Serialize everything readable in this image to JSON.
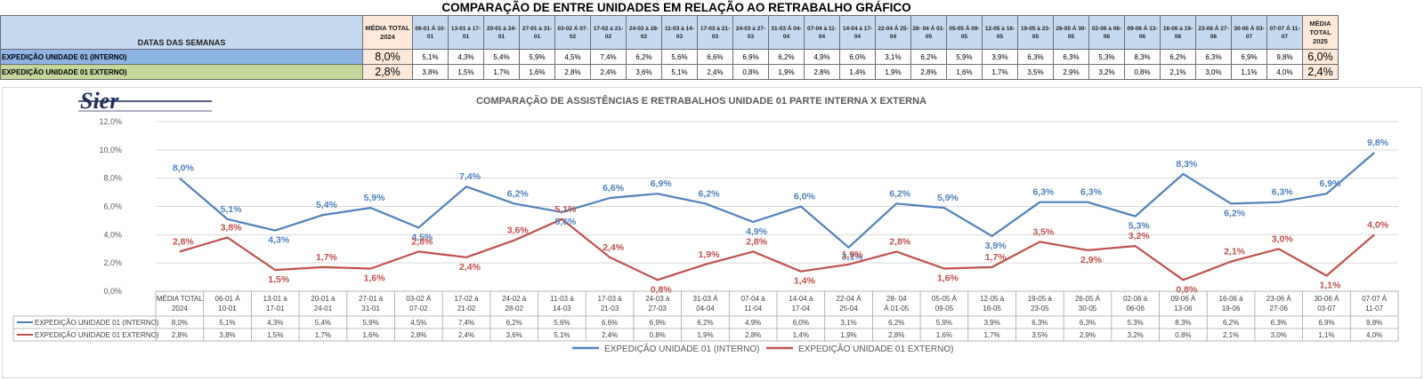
{
  "header": {
    "title": "COMPARAÇÃO DE ENTRE UNIDADES EM RELAÇÃO AO RETRABALHO GRÁFICO",
    "weeks_label": "DATAS DAS SEMANAS",
    "total_2024": "MÉDIA TOTAL 2024",
    "total_2025": "MÉDIA TOTAL 2025"
  },
  "weeks": [
    "06-01 Á 10-01",
    "13-01 à 17-01",
    "20-01 à 24-01",
    "27-01 à 31-01",
    "03-02 Á 07-02",
    "17-02 à 21-02",
    "24-02 à 28-02",
    "11-03 à 14-03",
    "17-03 à 21-03",
    "24-03 à 27-03",
    "31-03 Á 04-04",
    "07-04 à 11-04",
    "14-04 à 17-04",
    "22-04 Á 25-04",
    "28- 04 Á 01-05",
    "05-05 Á 09-05",
    "12-05 à 16-05",
    "19-05 à 23-05",
    "26-05 Á 30-05",
    "02-06 à 06-06",
    "09-06 Á 13-06",
    "16-06 à 19-06",
    "23-06 Á 27-06",
    "30-06 Á 03-07",
    "07-07 Á 11-07"
  ],
  "rows": [
    {
      "label": "EXPEDIÇÃO UNIDADE 01 (INTERNO)",
      "total_2024": "8,0%",
      "values": [
        "5,1%",
        "4,3%",
        "5,4%",
        "5,9%",
        "4,5%",
        "7,4%",
        "6,2%",
        "5,6%",
        "6,6%",
        "6,9%",
        "6,2%",
        "4,9%",
        "6,0%",
        "3,1%",
        "6,2%",
        "5,9%",
        "3,9%",
        "6,3%",
        "6,3%",
        "5,3%",
        "8,3%",
        "6,2%",
        "6,3%",
        "6,9%",
        "9,8%"
      ],
      "total_2025": "6,0%"
    },
    {
      "label": "EXPEDIÇÃO UNIDADE 01 EXTERNO)",
      "total_2024": "2,8%",
      "values": [
        "3,8%",
        "1,5%",
        "1,7%",
        "1,6%",
        "2,8%",
        "2,4%",
        "3,6%",
        "5,1%",
        "2,4%",
        "0,8%",
        "1,9%",
        "2,8%",
        "1,4%",
        "1,9%",
        "2,8%",
        "1,6%",
        "1,7%",
        "3,5%",
        "2,9%",
        "3,2%",
        "0,8%",
        "2,1%",
        "3,0%",
        "1,1%",
        "4,0%"
      ],
      "total_2025": "2,4%"
    }
  ],
  "logo": {
    "text": "Sier"
  },
  "colors": {
    "interno": "#4f81bd",
    "externo": "#c0504d",
    "header_bg": "#c5d9f1",
    "total_bg": "#fde9d9",
    "interno_label_bg": "#8db4e2",
    "externo_label_bg": "#c4d79b"
  },
  "chart_data": {
    "type": "line",
    "title": "COMPARAÇÃO DE ASSISTÊNCIAS E RETRABALHOS UNIDADE 01 PARTE INTERNA X EXTERNA",
    "categories": [
      "MÉDIA TOTAL 2024",
      "06-01 Á 10-01",
      "13-01 à 17-01",
      "20-01 à 24-01",
      "27-01 à 31-01",
      "03-02 Á 07-02",
      "17-02 à 21-02",
      "24-02 à 28-02",
      "11-03 à 14-03",
      "17-03 à 21-03",
      "24-03 à 27-03",
      "31-03 Á 04-04",
      "07-04 à 11-04",
      "14-04 à 17-04",
      "22-04 Á 25-04",
      "28- 04 Á 01-05",
      "05-05 Á 09-05",
      "12-05 à 16-05",
      "19-05 à 23-05",
      "26-05 Á 30-05",
      "02-06 à 06-06",
      "09-06 Á 13-06",
      "16-06 à 19-06",
      "23-06 Á 27-06",
      "30-06 Á 03-07",
      "07-07 Á 11-07"
    ],
    "series": [
      {
        "name": "EXPEDIÇÃO UNIDADE 01 (INTERNO)",
        "values": [
          8.0,
          5.1,
          4.3,
          5.4,
          5.9,
          4.5,
          7.4,
          6.2,
          5.6,
          6.6,
          6.9,
          6.2,
          4.9,
          6.0,
          3.1,
          6.2,
          5.9,
          3.9,
          6.3,
          6.3,
          5.3,
          8.3,
          6.2,
          6.3,
          6.9,
          9.8
        ],
        "labels": [
          "8,0%",
          "5,1%",
          "4,3%",
          "5,4%",
          "5,9%",
          "4,5%",
          "7,4%",
          "6,2%",
          "5,6%",
          "6,6%",
          "6,9%",
          "6,2%",
          "4,9%",
          "6,0%",
          "3,1%",
          "6,2%",
          "5,9%",
          "3,9%",
          "6,3%",
          "6,3%",
          "5,3%",
          "8,3%",
          "6,2%",
          "6,3%",
          "6,9%",
          "9,8%"
        ]
      },
      {
        "name": "EXPEDIÇÃO UNIDADE 01 EXTERNO)",
        "values": [
          2.8,
          3.8,
          1.5,
          1.7,
          1.6,
          2.8,
          2.4,
          3.6,
          5.1,
          2.4,
          0.8,
          1.9,
          2.8,
          1.4,
          1.9,
          2.8,
          1.6,
          1.7,
          3.5,
          2.9,
          3.2,
          0.8,
          2.1,
          3.0,
          1.1,
          4.0
        ],
        "labels": [
          "2,8%",
          "3,8%",
          "1,5%",
          "1,7%",
          "1,6%",
          "2,8%",
          "2,4%",
          "3,6%",
          "5,1%",
          "2,4%",
          "0,8%",
          "1,9%",
          "2,8%",
          "1,4%",
          "1,9%",
          "2,8%",
          "1,6%",
          "1,7%",
          "3,5%",
          "2,9%",
          "3,2%",
          "0,8%",
          "2,1%",
          "3,0%",
          "1,1%",
          "4,0%"
        ]
      }
    ],
    "legend": [
      "EXPEDIÇÃO UNIDADE 01 (INTERNO)",
      "EXPEDIÇÃO UNIDADE 01 EXTERNO)"
    ],
    "yticks": [
      "0,0%",
      "2,0%",
      "4,0%",
      "6,0%",
      "8,0%",
      "10,0%",
      "12,0%"
    ],
    "ylim": [
      0,
      12
    ],
    "grid": true,
    "legend_position": "bottom",
    "data_table": true
  }
}
